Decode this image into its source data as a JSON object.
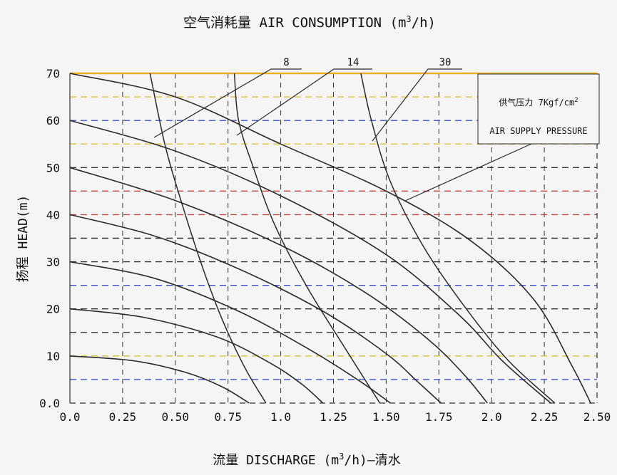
{
  "chart_data": {
    "type": "line",
    "title_parts": [
      "空气消耗量 AIR CONSUMPTION (m",
      "3",
      "/h)"
    ],
    "xlabel_parts": [
      "流量 DISCHARGE (m",
      "3",
      "/h)—清水"
    ],
    "ylabel": "扬程 HEAD(m)",
    "xlim": [
      0,
      2.5
    ],
    "ylim": [
      0,
      70
    ],
    "x_ticks": [
      0,
      0.25,
      0.5,
      0.75,
      1.0,
      1.25,
      1.5,
      1.75,
      2.0,
      2.25,
      2.5
    ],
    "x_tick_labels": [
      "0.0",
      "0.25",
      "0.50",
      "0.75",
      "1.0",
      "1.25",
      "1.50",
      "1.75",
      "2.0",
      "2.25",
      "2.50"
    ],
    "y_ticks": [
      0,
      10,
      20,
      30,
      40,
      50,
      60,
      70
    ],
    "y_tick_labels": [
      "0.0",
      "10",
      "20",
      "30",
      "40",
      "50",
      "60",
      "70"
    ],
    "grid": true,
    "horizontal_gridlines": [
      {
        "y": 5,
        "color": "#3b4fc4"
      },
      {
        "y": 10,
        "color": "#d8c23a"
      },
      {
        "y": 15,
        "color": "#333333"
      },
      {
        "y": 20,
        "color": "#333333"
      },
      {
        "y": 25,
        "color": "#3b4fc4"
      },
      {
        "y": 30,
        "color": "#333333"
      },
      {
        "y": 35,
        "color": "#333333"
      },
      {
        "y": 40,
        "color": "#c04a3a"
      },
      {
        "y": 45,
        "color": "#c04a3a"
      },
      {
        "y": 50,
        "color": "#333333"
      },
      {
        "y": 55,
        "color": "#e0c23a"
      },
      {
        "y": 60,
        "color": "#3b4fc4"
      },
      {
        "y": 65,
        "color": "#e0c23a"
      }
    ],
    "pressure_curves": [
      {
        "points": [
          [
            0,
            10
          ],
          [
            0.3,
            9
          ],
          [
            0.55,
            6.5
          ],
          [
            0.72,
            3.5
          ],
          [
            0.85,
            0
          ]
        ]
      },
      {
        "points": [
          [
            0,
            20
          ],
          [
            0.35,
            18.2
          ],
          [
            0.7,
            14
          ],
          [
            0.95,
            8.5
          ],
          [
            1.1,
            4
          ],
          [
            1.2,
            0
          ]
        ]
      },
      {
        "points": [
          [
            0,
            30
          ],
          [
            0.4,
            26.5
          ],
          [
            0.8,
            19.5
          ],
          [
            1.15,
            11
          ],
          [
            1.38,
            4.5
          ],
          [
            1.52,
            0
          ]
        ]
      },
      {
        "points": [
          [
            0,
            40
          ],
          [
            0.4,
            35.5
          ],
          [
            0.8,
            28.5
          ],
          [
            1.2,
            19.5
          ],
          [
            1.5,
            10.5
          ],
          [
            1.65,
            4.5
          ],
          [
            1.76,
            0
          ]
        ]
      },
      {
        "points": [
          [
            0,
            50
          ],
          [
            0.5,
            43
          ],
          [
            1.0,
            33.5
          ],
          [
            1.4,
            23.5
          ],
          [
            1.7,
            13.5
          ],
          [
            1.87,
            6
          ],
          [
            1.98,
            0
          ]
        ]
      },
      {
        "points": [
          [
            0,
            60
          ],
          [
            0.5,
            53.5
          ],
          [
            1.0,
            44
          ],
          [
            1.5,
            31.5
          ],
          [
            1.85,
            18.5
          ],
          [
            2.05,
            9
          ],
          [
            2.28,
            0
          ]
        ]
      },
      {
        "points": [
          [
            0,
            70
          ],
          [
            0.5,
            65
          ],
          [
            1.0,
            55
          ],
          [
            1.5,
            45
          ],
          [
            1.9,
            34.5
          ],
          [
            2.2,
            22
          ],
          [
            2.38,
            8
          ],
          [
            2.47,
            0
          ]
        ]
      }
    ],
    "air_curves": [
      {
        "label": "8",
        "points": [
          [
            0.38,
            70
          ],
          [
            0.45,
            55
          ],
          [
            0.52,
            44
          ],
          [
            0.62,
            30
          ],
          [
            0.72,
            18
          ],
          [
            0.83,
            7.5
          ],
          [
            0.93,
            0
          ]
        ]
      },
      {
        "label": "14",
        "points": [
          [
            0.78,
            70
          ],
          [
            0.8,
            60
          ],
          [
            0.87,
            50
          ],
          [
            0.97,
            38
          ],
          [
            1.12,
            25
          ],
          [
            1.3,
            12
          ],
          [
            1.47,
            0
          ]
        ]
      },
      {
        "label": "30",
        "points": [
          [
            1.38,
            70
          ],
          [
            1.43,
            60
          ],
          [
            1.52,
            47
          ],
          [
            1.68,
            33
          ],
          [
            1.88,
            20
          ],
          [
            2.08,
            9
          ],
          [
            2.3,
            0
          ]
        ]
      }
    ],
    "legend": {
      "line1": "供气压力 7Kgf/cm",
      "line1_sup": "2",
      "line2": "AIR SUPPLY PRESSURE",
      "placement": "top-right"
    },
    "colors": {
      "background": "#f5f5f5",
      "curve": "#2a2a2a",
      "top_border": "#e8b020"
    }
  }
}
